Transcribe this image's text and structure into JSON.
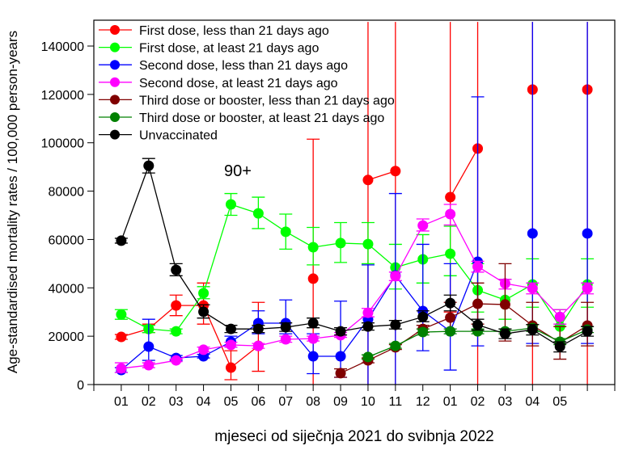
{
  "chart_data": {
    "type": "line",
    "title": "",
    "annotation": "90+",
    "xlabel": "mjeseci od siječnja 2021 do svibnja 2022",
    "ylabel": "Age-standardised mortality rates / 100,000 person-years",
    "ylim": [
      0,
      150000
    ],
    "yticks": [
      0,
      20000,
      40000,
      60000,
      80000,
      100000,
      120000,
      140000
    ],
    "ytick_labels": [
      "0",
      "20000",
      "40000",
      "60000",
      "80000",
      "100000",
      "120000",
      "140000"
    ],
    "categories": [
      "01",
      "02",
      "03",
      "04",
      "05",
      "06",
      "07",
      "08",
      "09",
      "10",
      "11",
      "12",
      "01",
      "02",
      "03",
      "04",
      "05",
      ""
    ],
    "legend_position": "top-left",
    "grid": false,
    "error_bars": true,
    "series": [
      {
        "name": "First dose, less than 21 days ago",
        "color": "#ff0000",
        "values": [
          19700,
          23000,
          32700,
          32700,
          7000,
          16000,
          null,
          43800,
          null,
          84600,
          88300,
          null,
          77500,
          97600,
          null,
          122000,
          null,
          122000
        ],
        "err_low": [
          18700,
          21500,
          28500,
          25000,
          2000,
          5500,
          null,
          0,
          null,
          0,
          0,
          null,
          30000,
          0,
          null,
          0,
          null,
          0
        ],
        "err_high": [
          20700,
          25000,
          37000,
          42000,
          14000,
          34000,
          null,
          101500,
          null,
          150000,
          150000,
          null,
          150000,
          150000,
          null,
          150000,
          null,
          150000
        ]
      },
      {
        "name": "First dose, at least 21 days ago",
        "color": "#00ff00",
        "values": [
          29000,
          23000,
          22000,
          37800,
          74500,
          70800,
          63200,
          56800,
          58500,
          58100,
          48400,
          51800,
          54100,
          39000,
          35000,
          41400,
          24000,
          41400
        ],
        "err_low": [
          27000,
          21500,
          21000,
          35500,
          70000,
          64500,
          56000,
          49500,
          50500,
          50000,
          39500,
          42000,
          45000,
          30000,
          27000,
          32000,
          19000,
          32000
        ],
        "err_high": [
          31000,
          24500,
          23000,
          40500,
          79000,
          77500,
          70500,
          65000,
          67000,
          67000,
          58000,
          62000,
          65500,
          50000,
          43500,
          52000,
          31000,
          52000
        ]
      },
      {
        "name": "Second dose, less than 21 days ago",
        "color": "#0000ff",
        "values": [
          6000,
          15700,
          11000,
          11700,
          17700,
          25400,
          25400,
          11700,
          11700,
          27000,
          45100,
          30400,
          22000,
          50800,
          null,
          62500,
          null,
          62500
        ],
        "err_low": [
          5000,
          10000,
          10000,
          11000,
          15500,
          21000,
          21000,
          4500,
          3000,
          0,
          0,
          14000,
          6000,
          16000,
          null,
          17000,
          null,
          17000
        ],
        "err_high": [
          7000,
          27000,
          12000,
          12500,
          20000,
          30500,
          35000,
          21000,
          34500,
          49500,
          79000,
          58000,
          50000,
          119000,
          null,
          150000,
          null,
          150000
        ]
      },
      {
        "name": "Second dose, at least 21 days ago",
        "color": "#ff00ff",
        "values": [
          6700,
          8000,
          10000,
          14400,
          16400,
          16000,
          18700,
          19000,
          20400,
          29700,
          44800,
          65800,
          70500,
          48800,
          41800,
          39800,
          28000,
          39800
        ],
        "err_low": [
          5000,
          7000,
          9500,
          13500,
          15500,
          15000,
          17500,
          18000,
          19500,
          28000,
          43000,
          63500,
          66000,
          46500,
          39500,
          37500,
          25000,
          37500
        ],
        "err_high": [
          9000,
          9000,
          10500,
          15500,
          17500,
          17000,
          20000,
          20000,
          21500,
          31500,
          46500,
          68500,
          74500,
          51000,
          43500,
          42000,
          31000,
          42000
        ]
      },
      {
        "name": "Third dose or booster, less than 21 days ago",
        "color": "#800000",
        "values": [
          null,
          null,
          null,
          null,
          null,
          null,
          null,
          null,
          4700,
          10000,
          15400,
          23000,
          27700,
          33400,
          33100,
          24400,
          17400,
          24400
        ],
        "err_low": [
          null,
          null,
          null,
          null,
          null,
          null,
          null,
          null,
          3000,
          9000,
          14500,
          21500,
          22000,
          25000,
          18000,
          16000,
          10500,
          16000
        ],
        "err_high": [
          null,
          null,
          null,
          null,
          null,
          null,
          null,
          null,
          6500,
          11000,
          16500,
          24500,
          34000,
          42000,
          50000,
          34000,
          24000,
          34000
        ]
      },
      {
        "name": "Third dose or booster, at least 21 days ago",
        "color": "#008000",
        "values": [
          null,
          null,
          null,
          null,
          null,
          null,
          null,
          null,
          null,
          11400,
          16000,
          21700,
          22000,
          22000,
          22000,
          23400,
          17700,
          22700
        ],
        "err_low": [
          null,
          null,
          null,
          null,
          null,
          null,
          null,
          null,
          null,
          10500,
          15000,
          20500,
          21000,
          21000,
          21000,
          22000,
          16500,
          21500
        ],
        "err_high": [
          null,
          null,
          null,
          null,
          null,
          null,
          null,
          null,
          null,
          12300,
          17000,
          23000,
          23000,
          23000,
          23000,
          24800,
          19000,
          24000
        ]
      },
      {
        "name": "Unvaccinated",
        "color": "#000000",
        "values": [
          59500,
          90500,
          47400,
          30100,
          23000,
          23000,
          23700,
          25400,
          22000,
          24000,
          24700,
          28000,
          33700,
          24700,
          21000,
          22700,
          15700,
          22000
        ],
        "err_low": [
          58500,
          87500,
          45000,
          27500,
          21500,
          21500,
          22000,
          23500,
          20500,
          22500,
          23000,
          26000,
          30500,
          22500,
          19000,
          20500,
          13500,
          20000
        ],
        "err_high": [
          60500,
          93500,
          50000,
          33000,
          24500,
          24500,
          25500,
          27500,
          23500,
          25500,
          26500,
          30500,
          37000,
          27000,
          23000,
          24800,
          17700,
          24000
        ]
      }
    ]
  }
}
